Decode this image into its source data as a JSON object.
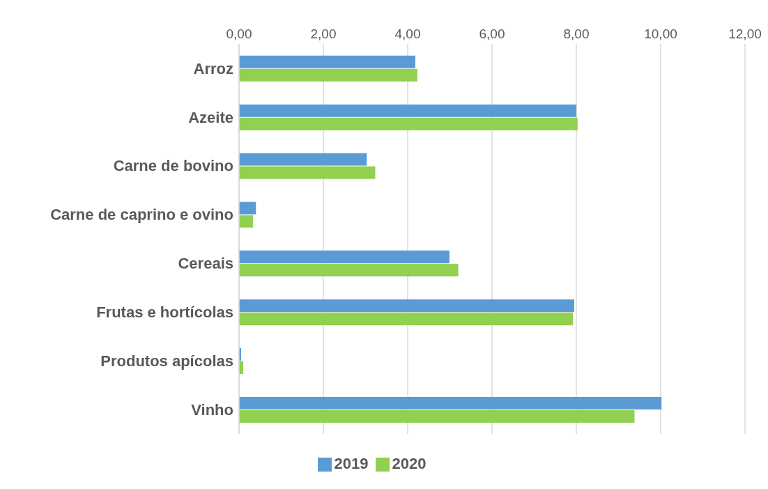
{
  "chart_data": {
    "type": "bar",
    "orientation": "horizontal",
    "categories": [
      "Arroz",
      "Azeite",
      "Carne de bovino",
      "Carne de caprino e ovino",
      "Cereais",
      "Frutas e hortícolas",
      "Produtos apícolas",
      "Vinho"
    ],
    "series": [
      {
        "name": "2019",
        "color": "#5b9bd5",
        "values": [
          4.18,
          8.0,
          3.03,
          0.4,
          4.99,
          7.95,
          0.05,
          10.02
        ]
      },
      {
        "name": "2020",
        "color": "#92d050",
        "values": [
          4.23,
          8.03,
          3.23,
          0.33,
          5.2,
          7.92,
          0.1,
          9.38
        ]
      }
    ],
    "xlim": [
      0,
      12
    ],
    "xticks": [
      {
        "value": 0,
        "label": "0,00"
      },
      {
        "value": 2,
        "label": "2,00"
      },
      {
        "value": 4,
        "label": "4,00"
      },
      {
        "value": 6,
        "label": "6,00"
      },
      {
        "value": 8,
        "label": "8,00"
      },
      {
        "value": 10,
        "label": "10,00"
      },
      {
        "value": 12,
        "label": "12,00"
      }
    ],
    "grid": "x",
    "legend": "bottom"
  }
}
